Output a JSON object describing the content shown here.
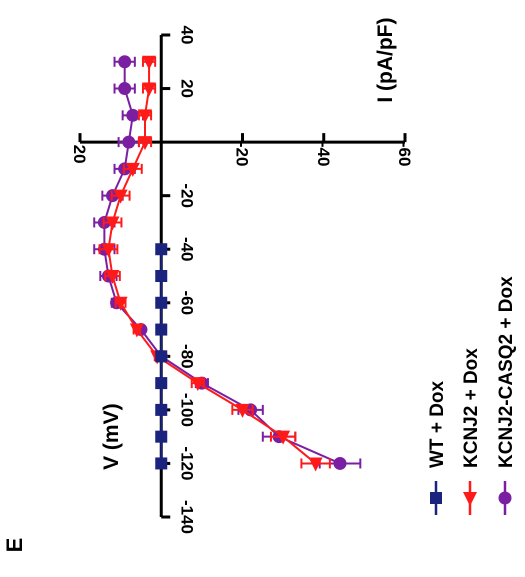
{
  "panel_label": "E",
  "chart_data": {
    "type": "line",
    "x_label": "V (mV)",
    "y_label": "I (pA/pF)",
    "x_ticks": [
      -140,
      -120,
      -100,
      -80,
      -60,
      -40,
      -20,
      20,
      40
    ],
    "x_tick_labels": [
      "-140",
      "-120",
      "-100",
      "-80",
      "-60",
      "-40",
      "-20",
      "20",
      "40"
    ],
    "y_ticks": [
      20,
      -20,
      -40,
      -60
    ],
    "y_tick_labels": [
      "20",
      "-20",
      "-40",
      "-60"
    ],
    "xlim": [
      -140,
      40
    ],
    "ylim": [
      20,
      -60
    ],
    "series": [
      {
        "name": "WT + Dox",
        "color": "#1a237e",
        "marker": "square",
        "x": [
          -120,
          -110,
          -100,
          -90,
          -80,
          -70,
          -60,
          -50,
          -40
        ],
        "y": [
          0,
          0,
          0,
          0,
          0,
          0,
          0,
          0,
          0
        ],
        "err": [
          0.5,
          0.5,
          0.5,
          0.5,
          0.5,
          0.5,
          0.5,
          0.5,
          0.5
        ]
      },
      {
        "name": "KCNJ2 + Dox",
        "color": "#ff1a1a",
        "marker": "triangle",
        "x": [
          -120,
          -110,
          -100,
          -90,
          -80,
          -70,
          -60,
          -50,
          -40,
          -30,
          -20,
          -10,
          0,
          10,
          20,
          30
        ],
        "y": [
          -38,
          -30,
          -20,
          -9,
          1,
          6,
          10,
          12,
          13,
          12,
          10,
          7,
          4,
          4,
          3,
          3
        ],
        "err": [
          3.5,
          3,
          2.5,
          1.5,
          0.6,
          0.8,
          1.2,
          1.8,
          2.2,
          2.2,
          2.2,
          2.2,
          1.5,
          1.5,
          1.5,
          1.5
        ]
      },
      {
        "name": "KCNJ2-CASQ2 + Dox",
        "color": "#7b1fa2",
        "marker": "circle",
        "x": [
          -120,
          -110,
          -100,
          -90,
          -80,
          -70,
          -60,
          -50,
          -40,
          -30,
          -20,
          -10,
          0,
          10,
          20,
          30
        ],
        "y": [
          -44,
          -29,
          -22,
          -10,
          0,
          5,
          11,
          13,
          14,
          14,
          12,
          9,
          8,
          7,
          9,
          9
        ],
        "err": [
          5,
          4,
          3,
          1.5,
          0.6,
          0.8,
          1.2,
          2,
          2.5,
          2.5,
          2.5,
          2.5,
          2.5,
          2.5,
          2.5,
          2.5
        ]
      }
    ],
    "legend_position": "bottom-right",
    "grid": false
  }
}
